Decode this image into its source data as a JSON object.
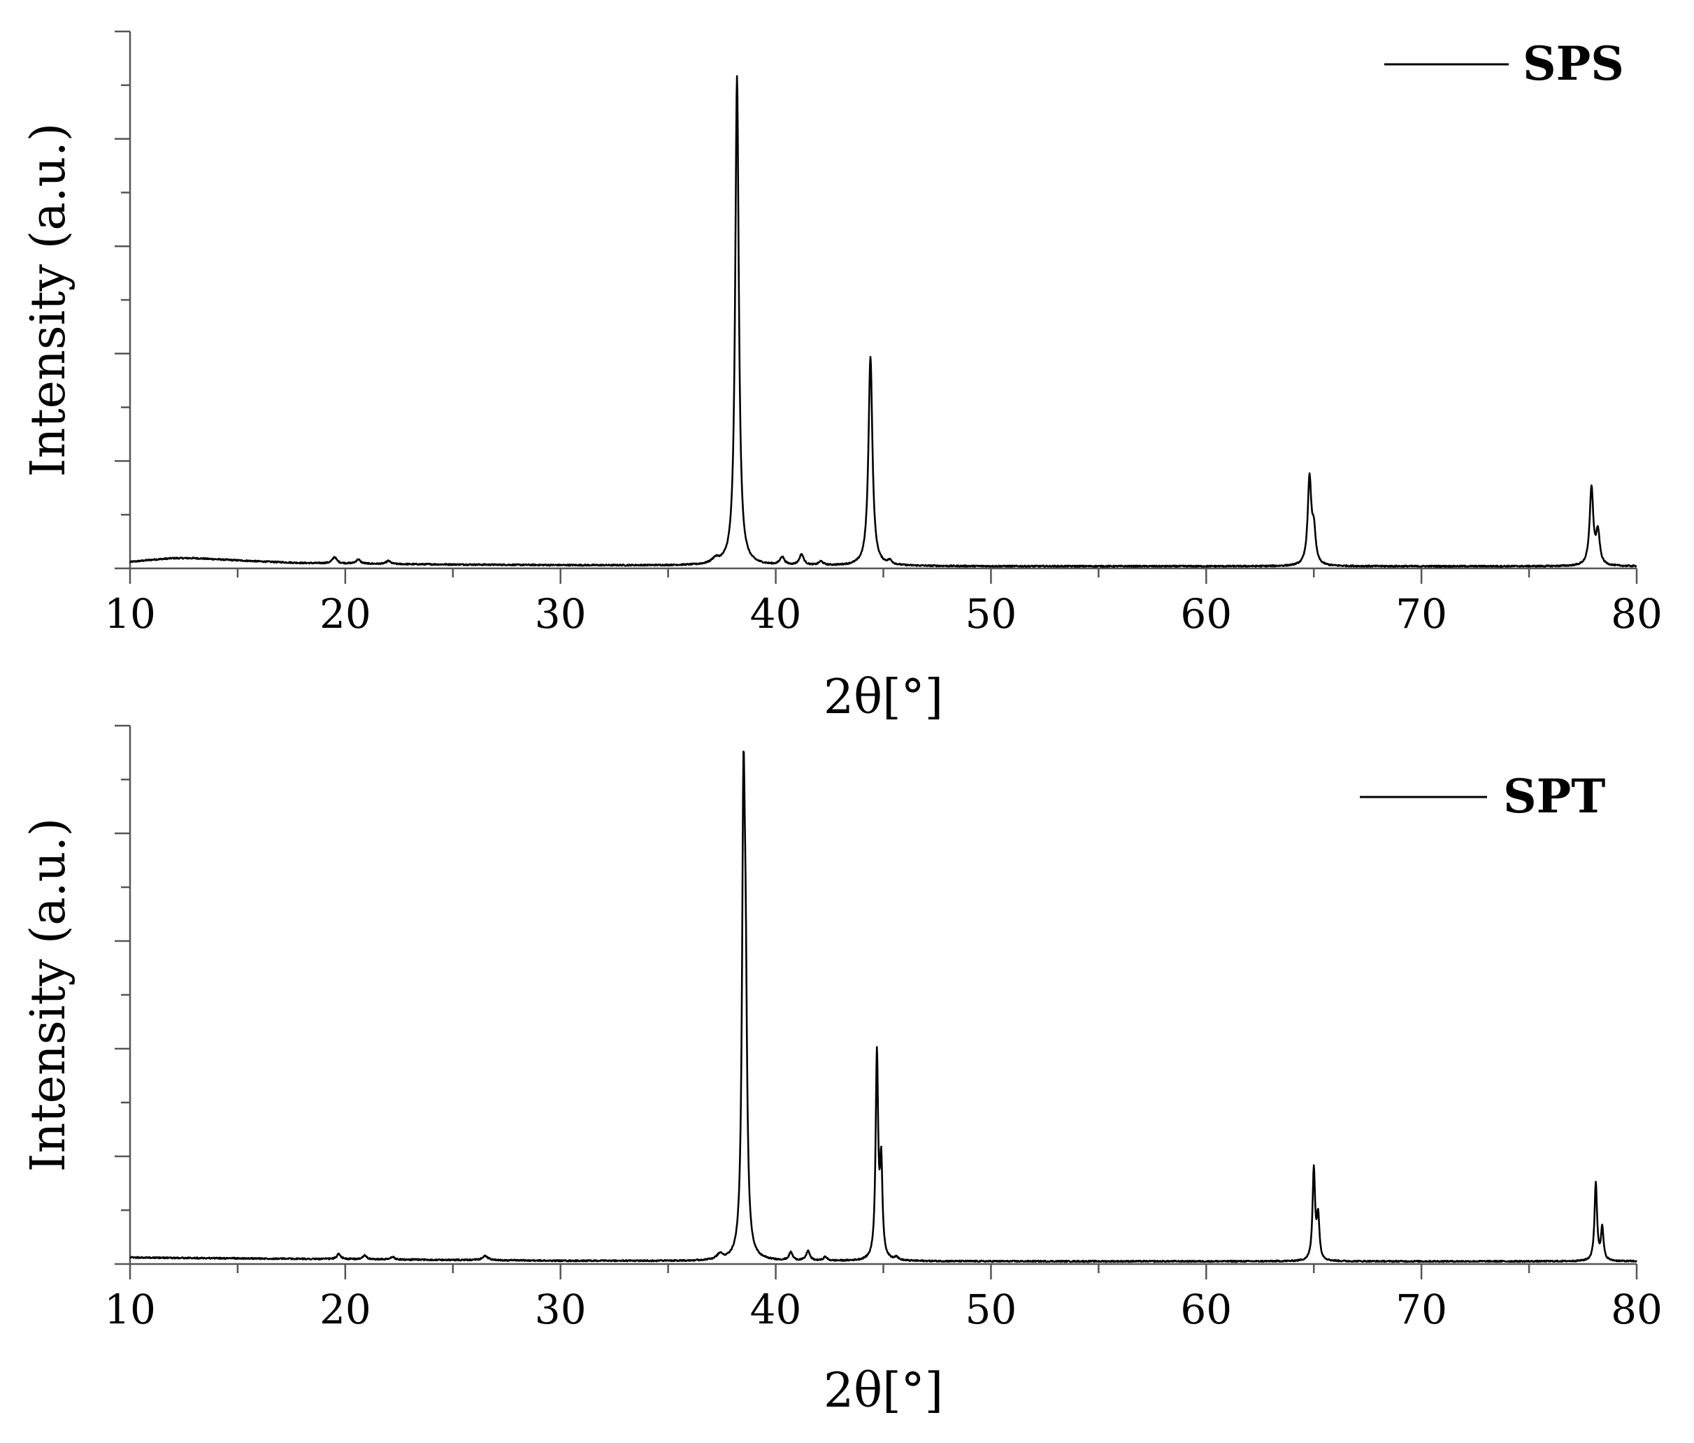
{
  "chart_data": [
    {
      "type": "line",
      "title": "",
      "xlabel": "2θ[°]",
      "ylabel": "Intensity (a.u.)",
      "xlim": [
        10,
        80
      ],
      "ylim": [
        0,
        100
      ],
      "xticks": [
        "10",
        "20",
        "30",
        "40",
        "50",
        "60",
        "70",
        "80"
      ],
      "y_tick_labels_shown": false,
      "grid": false,
      "legend_position": "top-right",
      "series": [
        {
          "name": "SPS",
          "color": "#000000",
          "baseline": [
            [
              10,
              1.2
            ],
            [
              11,
              1.6
            ],
            [
              12,
              1.9
            ],
            [
              13,
              1.9
            ],
            [
              14,
              1.7
            ],
            [
              16,
              1.3
            ],
            [
              18,
              1.0
            ],
            [
              22,
              0.8
            ],
            [
              30,
              0.6
            ],
            [
              50,
              0.4
            ],
            [
              80,
              0.4
            ]
          ],
          "peaks": [
            {
              "x": 19.5,
              "height": 1.2,
              "width": 0.12
            },
            {
              "x": 20.6,
              "height": 0.8,
              "width": 0.12
            },
            {
              "x": 22.0,
              "height": 0.6,
              "width": 0.12
            },
            {
              "x": 37.2,
              "height": 0.9,
              "width": 0.2
            },
            {
              "x": 38.2,
              "height": 91.0,
              "width": 0.1
            },
            {
              "x": 40.3,
              "height": 1.5,
              "width": 0.12
            },
            {
              "x": 41.2,
              "height": 2.0,
              "width": 0.12
            },
            {
              "x": 42.1,
              "height": 0.7,
              "width": 0.12
            },
            {
              "x": 44.4,
              "height": 39.0,
              "width": 0.11
            },
            {
              "x": 45.3,
              "height": 0.7,
              "width": 0.12
            },
            {
              "x": 64.8,
              "height": 16.0,
              "width": 0.1
            },
            {
              "x": 65.0,
              "height": 6.0,
              "width": 0.1
            },
            {
              "x": 77.9,
              "height": 14.5,
              "width": 0.1
            },
            {
              "x": 78.2,
              "height": 6.0,
              "width": 0.1
            }
          ]
        }
      ]
    },
    {
      "type": "line",
      "title": "",
      "xlabel": "2θ[°]",
      "ylabel": "Intensity (a.u.)",
      "xlim": [
        10,
        80
      ],
      "ylim": [
        0,
        100
      ],
      "xticks": [
        "10",
        "20",
        "30",
        "40",
        "50",
        "60",
        "70",
        "80"
      ],
      "y_tick_labels_shown": false,
      "grid": false,
      "legend_position": "top-right",
      "series": [
        {
          "name": "SPT",
          "color": "#000000",
          "baseline": [
            [
              10,
              1.2
            ],
            [
              20,
              0.9
            ],
            [
              30,
              0.6
            ],
            [
              50,
              0.5
            ],
            [
              80,
              0.5
            ]
          ],
          "peaks": [
            {
              "x": 19.7,
              "height": 1.0,
              "width": 0.1
            },
            {
              "x": 20.9,
              "height": 0.8,
              "width": 0.1
            },
            {
              "x": 22.2,
              "height": 0.5,
              "width": 0.1
            },
            {
              "x": 26.5,
              "height": 0.8,
              "width": 0.15
            },
            {
              "x": 37.4,
              "height": 1.0,
              "width": 0.15
            },
            {
              "x": 38.5,
              "height": 79.0,
              "width": 0.08
            },
            {
              "x": 38.6,
              "height": 40.0,
              "width": 0.08
            },
            {
              "x": 40.7,
              "height": 1.5,
              "width": 0.1
            },
            {
              "x": 41.5,
              "height": 1.8,
              "width": 0.1
            },
            {
              "x": 42.3,
              "height": 0.7,
              "width": 0.1
            },
            {
              "x": 44.7,
              "height": 38.0,
              "width": 0.07
            },
            {
              "x": 44.9,
              "height": 17.0,
              "width": 0.07
            },
            {
              "x": 45.6,
              "height": 0.6,
              "width": 0.1
            },
            {
              "x": 65.0,
              "height": 17.0,
              "width": 0.07
            },
            {
              "x": 65.2,
              "height": 8.0,
              "width": 0.07
            },
            {
              "x": 78.1,
              "height": 14.5,
              "width": 0.07
            },
            {
              "x": 78.4,
              "height": 6.0,
              "width": 0.07
            }
          ]
        }
      ]
    }
  ]
}
